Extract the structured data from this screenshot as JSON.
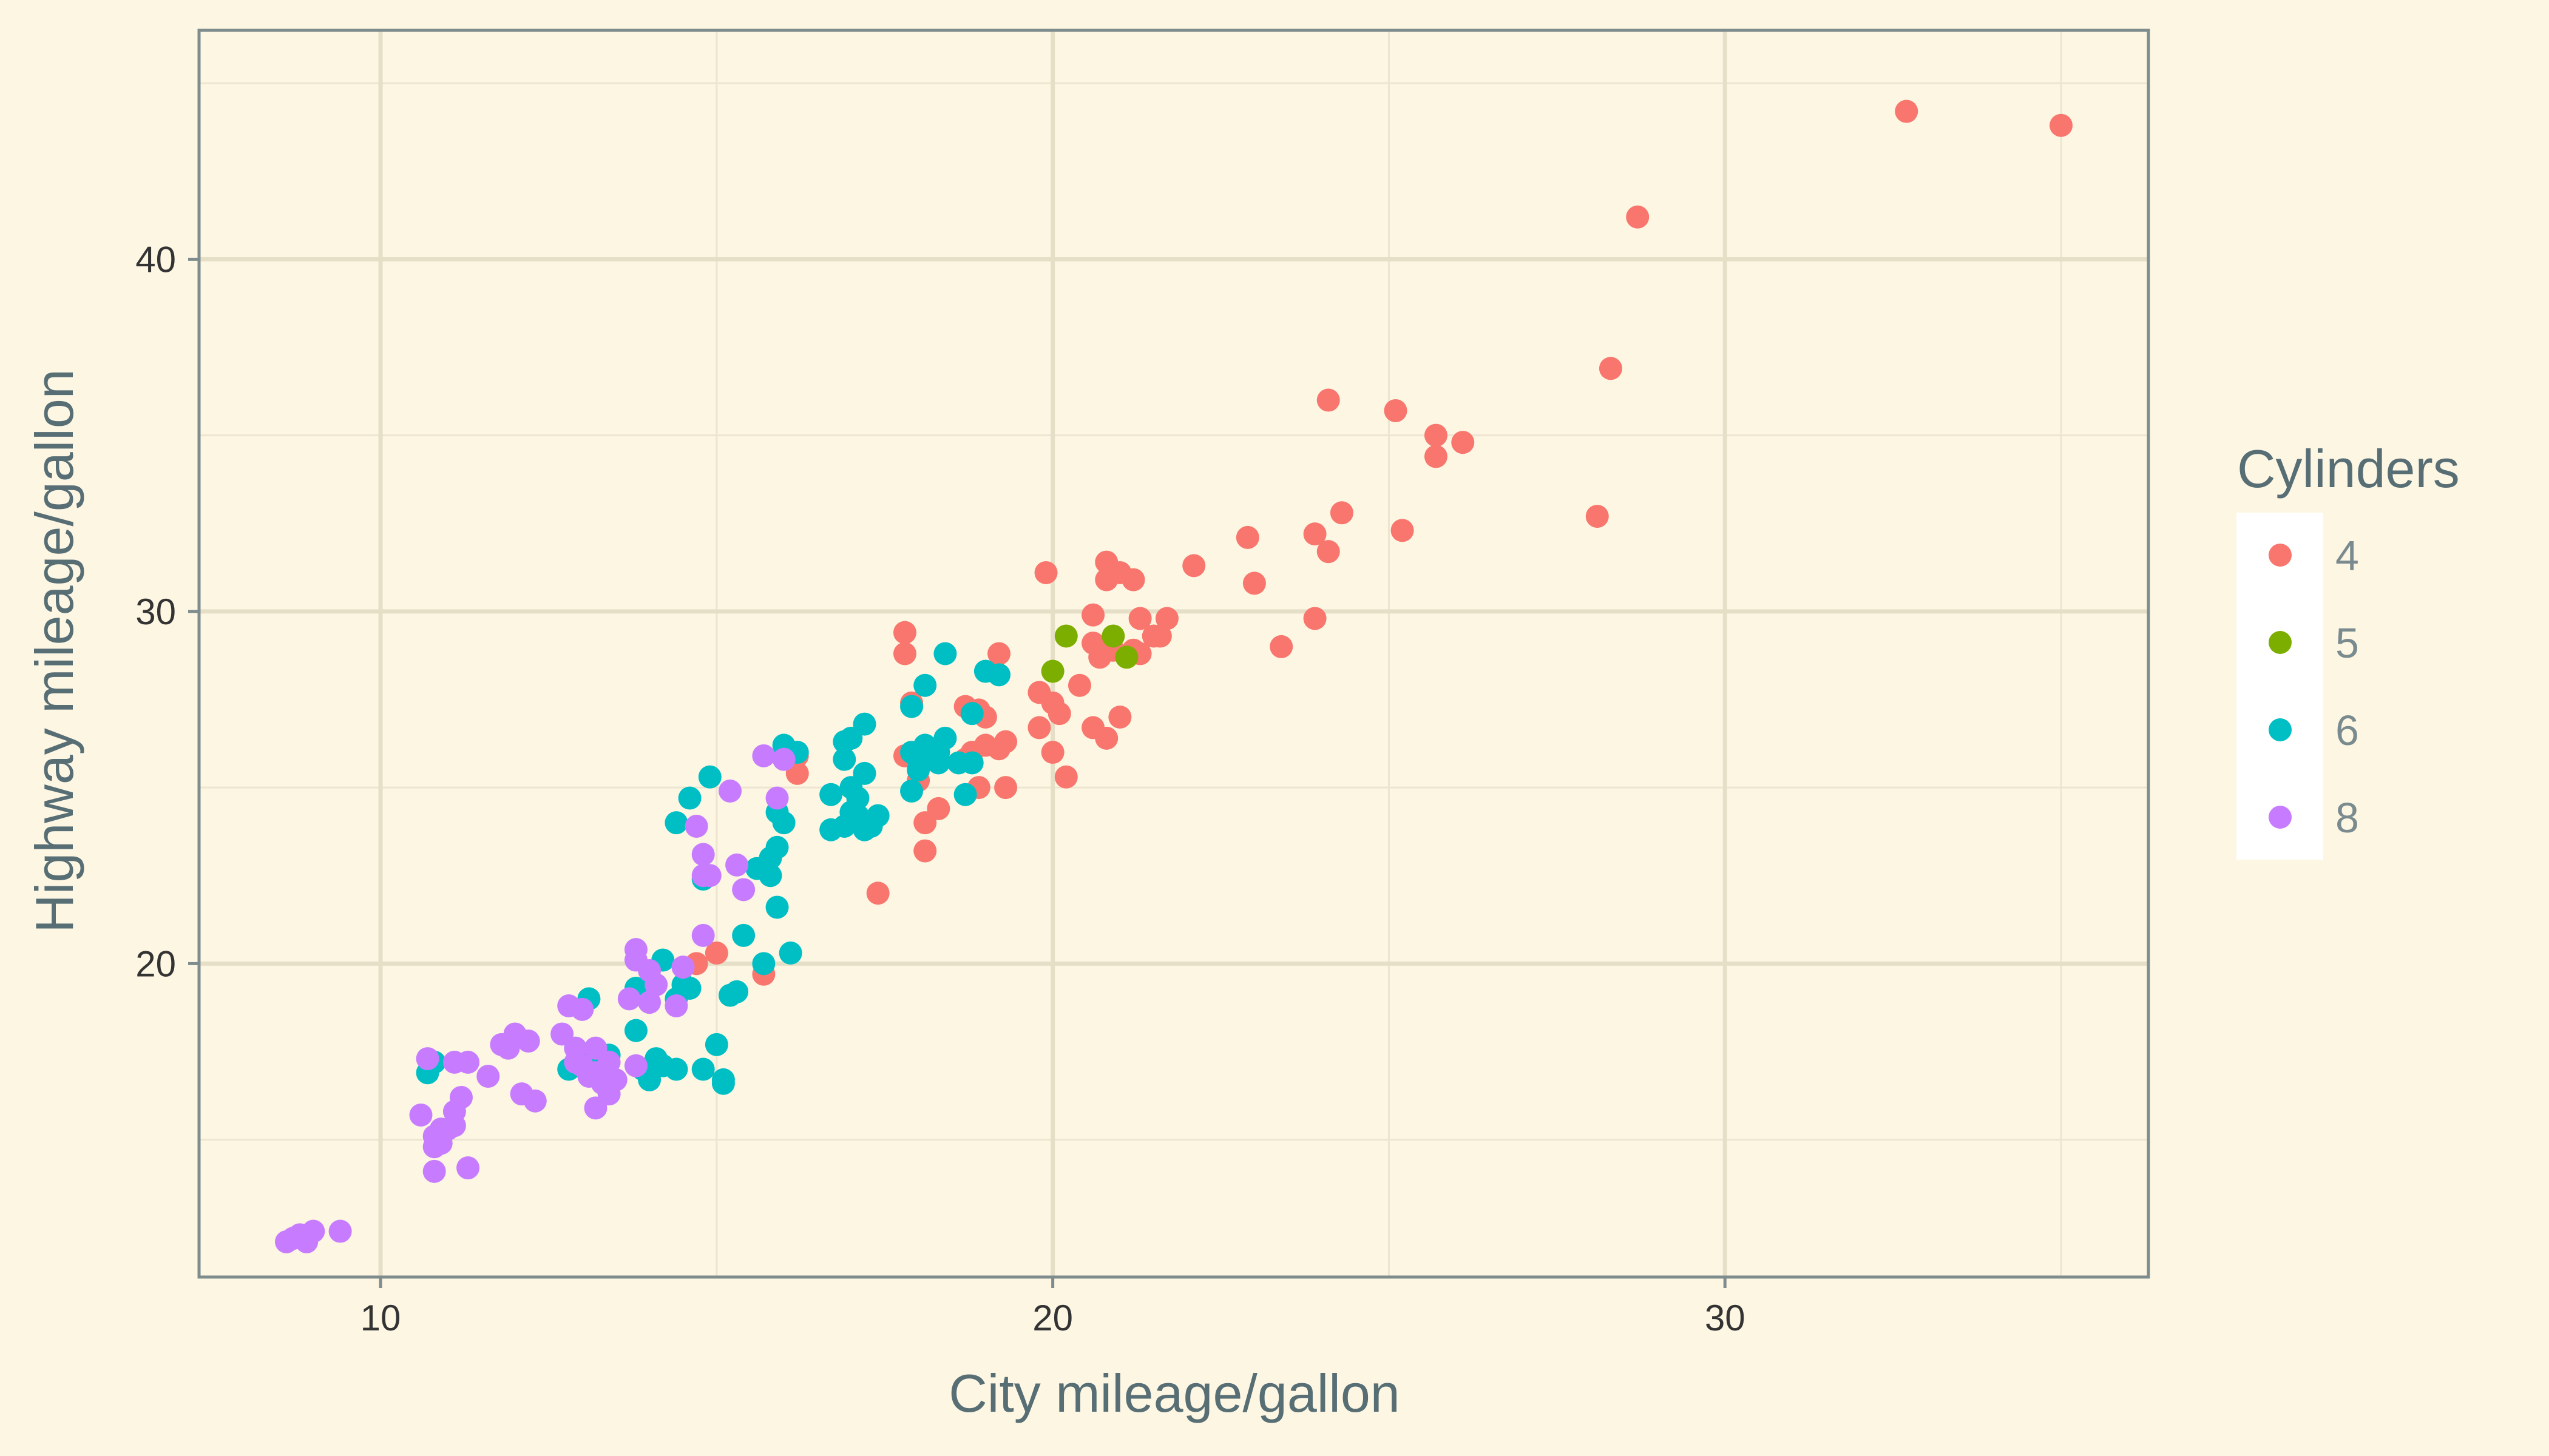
{
  "chart_data": {
    "type": "scatter",
    "title": "",
    "xlabel": "City mileage/gallon",
    "ylabel": "Highway mileage/gallon",
    "xlim": [
      7.3,
      36.3
    ],
    "ylim": [
      11.1,
      46.5
    ],
    "x_ticks": [
      10,
      20,
      30
    ],
    "y_ticks": [
      20,
      30,
      40
    ],
    "x_minor_ticks": [
      15,
      25,
      35
    ],
    "y_minor_ticks": [
      15,
      25,
      35,
      45
    ],
    "grid": true,
    "legend": {
      "title": "Cylinders",
      "position": "right"
    },
    "series": [
      {
        "name": "4",
        "color": "#f8766d",
        "points": [
          [
            32.7,
            44.2
          ],
          [
            35.0,
            43.8
          ],
          [
            28.7,
            41.2
          ],
          [
            28.3,
            36.9
          ],
          [
            28.1,
            32.7
          ],
          [
            24.1,
            36.0
          ],
          [
            25.1,
            35.7
          ],
          [
            25.7,
            35.0
          ],
          [
            26.1,
            34.8
          ],
          [
            25.7,
            34.4
          ],
          [
            24.3,
            32.8
          ],
          [
            23.9,
            32.2
          ],
          [
            25.2,
            32.3
          ],
          [
            24.1,
            31.7
          ],
          [
            22.9,
            32.1
          ],
          [
            23.0,
            30.8
          ],
          [
            22.1,
            31.3
          ],
          [
            20.8,
            31.4
          ],
          [
            21.0,
            31.1
          ],
          [
            21.2,
            30.9
          ],
          [
            20.8,
            30.9
          ],
          [
            19.9,
            31.1
          ],
          [
            21.7,
            29.8
          ],
          [
            21.3,
            29.8
          ],
          [
            20.6,
            29.9
          ],
          [
            21.5,
            29.3
          ],
          [
            21.6,
            29.3
          ],
          [
            20.9,
            28.9
          ],
          [
            21.2,
            28.9
          ],
          [
            20.7,
            28.7
          ],
          [
            21.3,
            28.8
          ],
          [
            20.6,
            29.1
          ],
          [
            23.4,
            29.0
          ],
          [
            23.9,
            29.8
          ],
          [
            20.4,
            27.9
          ],
          [
            20.0,
            27.4
          ],
          [
            20.1,
            27.1
          ],
          [
            19.8,
            27.7
          ],
          [
            20.6,
            26.7
          ],
          [
            20.8,
            26.4
          ],
          [
            21.0,
            27.0
          ],
          [
            19.2,
            28.8
          ],
          [
            19.8,
            26.7
          ],
          [
            17.8,
            29.4
          ],
          [
            17.8,
            28.8
          ],
          [
            19.2,
            26.1
          ],
          [
            19.3,
            26.3
          ],
          [
            19.0,
            26.2
          ],
          [
            20.0,
            26.0
          ],
          [
            18.8,
            26.0
          ],
          [
            18.7,
            25.8
          ],
          [
            19.0,
            27.0
          ],
          [
            18.9,
            27.2
          ],
          [
            18.7,
            27.3
          ],
          [
            20.2,
            25.3
          ],
          [
            19.3,
            25.0
          ],
          [
            18.9,
            25.0
          ],
          [
            18.0,
            25.2
          ],
          [
            17.8,
            25.9
          ],
          [
            17.9,
            27.4
          ],
          [
            18.3,
            24.4
          ],
          [
            18.1,
            24.0
          ],
          [
            18.1,
            23.2
          ],
          [
            17.4,
            22.0
          ],
          [
            16.2,
            25.4
          ],
          [
            16.2,
            25.9
          ],
          [
            15.0,
            20.3
          ],
          [
            14.7,
            20.0
          ],
          [
            15.7,
            19.7
          ]
        ]
      },
      {
        "name": "5",
        "color": "#7cae00",
        "points": [
          [
            20.2,
            29.3
          ],
          [
            20.9,
            29.3
          ],
          [
            20.0,
            28.3
          ],
          [
            21.1,
            28.7
          ]
        ]
      },
      {
        "name": "6",
        "color": "#00bfc4",
        "points": [
          [
            18.4,
            28.8
          ],
          [
            17.9,
            27.3
          ],
          [
            18.1,
            27.9
          ],
          [
            19.0,
            28.3
          ],
          [
            19.2,
            28.2
          ],
          [
            18.8,
            27.1
          ],
          [
            17.2,
            26.8
          ],
          [
            18.4,
            26.4
          ],
          [
            18.2,
            26.1
          ],
          [
            18.1,
            26.2
          ],
          [
            18.3,
            26.0
          ],
          [
            17.9,
            26.0
          ],
          [
            18.0,
            25.8
          ],
          [
            18.3,
            25.7
          ],
          [
            18.6,
            25.7
          ],
          [
            18.0,
            25.5
          ],
          [
            16.9,
            26.3
          ],
          [
            17.0,
            26.4
          ],
          [
            16.9,
            25.8
          ],
          [
            17.2,
            25.4
          ],
          [
            17.0,
            25.0
          ],
          [
            17.1,
            24.7
          ],
          [
            16.7,
            24.8
          ],
          [
            17.0,
            24.3
          ],
          [
            17.1,
            24.1
          ],
          [
            17.3,
            23.9
          ],
          [
            17.1,
            24.2
          ],
          [
            17.4,
            24.2
          ],
          [
            17.2,
            23.8
          ],
          [
            16.9,
            23.9
          ],
          [
            16.7,
            23.8
          ],
          [
            17.9,
            24.9
          ],
          [
            18.7,
            24.8
          ],
          [
            18.8,
            25.7
          ],
          [
            16.0,
            26.2
          ],
          [
            16.1,
            26.0
          ],
          [
            16.2,
            26.0
          ],
          [
            15.9,
            24.3
          ],
          [
            16.0,
            24.0
          ],
          [
            15.9,
            23.3
          ],
          [
            15.6,
            22.7
          ],
          [
            15.8,
            23.0
          ],
          [
            15.8,
            22.5
          ],
          [
            15.9,
            21.6
          ],
          [
            15.4,
            20.8
          ],
          [
            15.7,
            20.0
          ],
          [
            16.1,
            20.3
          ],
          [
            14.9,
            25.3
          ],
          [
            14.6,
            24.7
          ],
          [
            14.4,
            24.0
          ],
          [
            14.8,
            22.4
          ],
          [
            14.5,
            19.4
          ],
          [
            14.4,
            19.0
          ],
          [
            14.6,
            19.3
          ],
          [
            14.2,
            20.1
          ],
          [
            15.3,
            19.2
          ],
          [
            15.2,
            19.1
          ],
          [
            13.8,
            19.3
          ],
          [
            13.1,
            19.0
          ],
          [
            13.8,
            18.1
          ],
          [
            15.0,
            17.7
          ],
          [
            14.1,
            17.3
          ],
          [
            14.2,
            17.1
          ],
          [
            13.9,
            17.0
          ],
          [
            14.0,
            16.7
          ],
          [
            14.4,
            17.0
          ],
          [
            15.1,
            16.7
          ],
          [
            14.8,
            17.0
          ],
          [
            15.1,
            16.6
          ],
          [
            13.2,
            17.4
          ],
          [
            13.4,
            17.4
          ],
          [
            13.2,
            16.9
          ],
          [
            12.8,
            17.0
          ],
          [
            10.7,
            16.9
          ],
          [
            10.8,
            17.2
          ]
        ]
      },
      {
        "name": "8",
        "color": "#c77cff",
        "points": [
          [
            15.7,
            25.9
          ],
          [
            16.0,
            25.8
          ],
          [
            15.2,
            24.9
          ],
          [
            15.9,
            24.7
          ],
          [
            14.7,
            23.9
          ],
          [
            15.3,
            22.8
          ],
          [
            15.4,
            22.1
          ],
          [
            14.9,
            22.5
          ],
          [
            14.8,
            22.5
          ],
          [
            14.8,
            20.8
          ],
          [
            14.5,
            19.9
          ],
          [
            14.8,
            23.1
          ],
          [
            13.8,
            20.4
          ],
          [
            13.8,
            20.1
          ],
          [
            14.0,
            19.8
          ],
          [
            14.1,
            19.4
          ],
          [
            13.7,
            19.0
          ],
          [
            14.0,
            18.9
          ],
          [
            14.4,
            18.8
          ],
          [
            12.8,
            18.8
          ],
          [
            13.0,
            18.7
          ],
          [
            12.7,
            18.0
          ],
          [
            12.0,
            17.9
          ],
          [
            11.9,
            17.6
          ],
          [
            11.8,
            17.7
          ],
          [
            12.2,
            17.8
          ],
          [
            12.0,
            18.0
          ],
          [
            12.9,
            17.6
          ],
          [
            12.9,
            17.2
          ],
          [
            13.0,
            17.1
          ],
          [
            13.2,
            16.9
          ],
          [
            13.1,
            16.8
          ],
          [
            13.3,
            16.6
          ],
          [
            13.5,
            16.7
          ],
          [
            13.4,
            16.3
          ],
          [
            13.2,
            17.6
          ],
          [
            13.4,
            17.2
          ],
          [
            13.8,
            17.1
          ],
          [
            13.2,
            15.9
          ],
          [
            11.6,
            16.8
          ],
          [
            12.1,
            16.3
          ],
          [
            12.3,
            16.1
          ],
          [
            11.1,
            17.2
          ],
          [
            11.3,
            17.2
          ],
          [
            10.7,
            17.3
          ],
          [
            10.6,
            15.7
          ],
          [
            10.8,
            15.1
          ],
          [
            10.9,
            15.3
          ],
          [
            11.0,
            15.3
          ],
          [
            11.1,
            15.4
          ],
          [
            11.1,
            15.8
          ],
          [
            11.2,
            16.2
          ],
          [
            10.9,
            14.9
          ],
          [
            10.8,
            14.8
          ],
          [
            11.3,
            14.2
          ],
          [
            10.8,
            14.1
          ],
          [
            9.4,
            12.4
          ],
          [
            9.0,
            12.4
          ],
          [
            8.8,
            12.3
          ],
          [
            8.7,
            12.2
          ],
          [
            8.6,
            12.1
          ],
          [
            8.9,
            12.1
          ]
        ]
      }
    ]
  }
}
